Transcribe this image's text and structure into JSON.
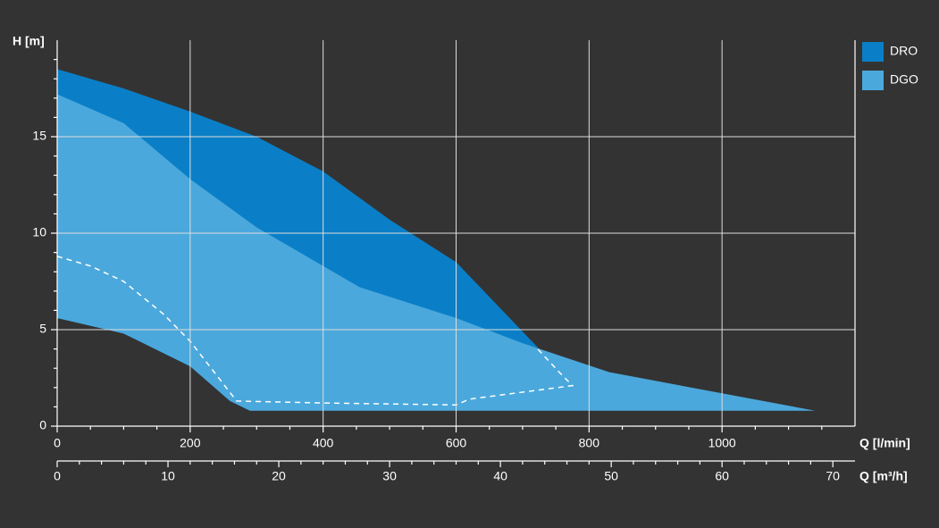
{
  "chart_data": {
    "type": "area",
    "ylabel": "H [m]",
    "xlabel": "Q [l/min]",
    "x2label": "Q [m³/h]",
    "xlim": [
      0,
      1200
    ],
    "ylim": [
      0,
      20
    ],
    "x2lim": [
      0,
      72
    ],
    "xticks": [
      0,
      200,
      400,
      600,
      800,
      1000
    ],
    "xminorticks": [
      50,
      100,
      150,
      250,
      300,
      350,
      450,
      500,
      550,
      650,
      700,
      750,
      850,
      900,
      950,
      1050,
      1100,
      1150
    ],
    "yticks": [
      0,
      5,
      10,
      15
    ],
    "yminorticks": [
      1,
      2,
      3,
      4,
      6,
      7,
      8,
      9,
      11,
      12,
      13,
      14,
      16,
      17,
      18,
      19
    ],
    "x2ticks": [
      0,
      10,
      20,
      30,
      40,
      50,
      60,
      70
    ],
    "x2minorticks": [
      2,
      4,
      6,
      8,
      12,
      14,
      16,
      18,
      22,
      24,
      26,
      28,
      32,
      34,
      36,
      38,
      42,
      44,
      46,
      48,
      52,
      54,
      56,
      58,
      62,
      64,
      66,
      68
    ],
    "grid": true,
    "legend": "right",
    "series": [
      {
        "name": "DRO",
        "color": "#0a7fc7",
        "x": [
          0,
          100,
          200,
          300,
          400,
          500,
          600,
          700,
          725,
          290,
          260,
          200,
          100,
          0
        ],
        "values": [
          18.5,
          17.5,
          16.3,
          15,
          13.2,
          10.7,
          8.5,
          4.9,
          4.0,
          0.8,
          1.3,
          3.1,
          4.8,
          5.6
        ]
      },
      {
        "name": "DGO",
        "color": "#4ba8dc",
        "x": [
          0,
          100,
          200,
          300,
          400,
          455,
          600,
          700,
          830,
          1140,
          290,
          260,
          200,
          100,
          0
        ],
        "values": [
          17.2,
          15.7,
          12.8,
          10.3,
          8.3,
          7.2,
          5.6,
          4.3,
          2.8,
          0.8,
          0.8,
          1.3,
          3.1,
          4.8,
          5.6
        ]
      },
      {
        "color": "#ffffff",
        "dashed": true,
        "x": [
          0,
          50,
          100,
          160,
          200,
          270,
          400,
          600,
          620,
          775,
          755,
          720
        ],
        "values": [
          8.8,
          8.3,
          7.5,
          5.8,
          4.4,
          1.3,
          1.2,
          1.1,
          1.4,
          2.1,
          2.8,
          4.1
        ]
      }
    ]
  }
}
